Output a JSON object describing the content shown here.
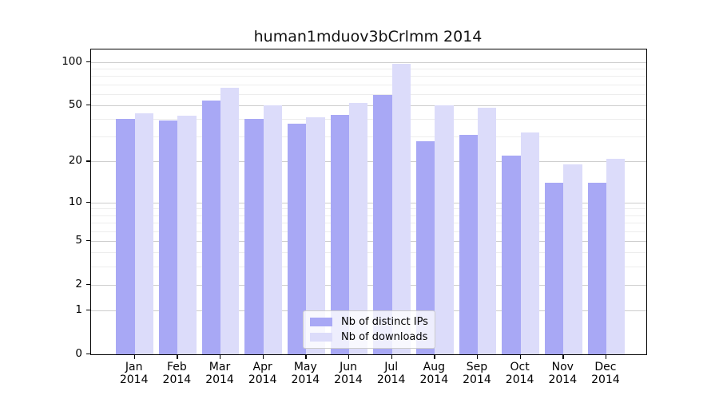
{
  "chart_data": {
    "type": "bar",
    "title": "human1mduov3bCrlmm 2014",
    "categories": [
      {
        "month": "Jan",
        "year": "2014"
      },
      {
        "month": "Feb",
        "year": "2014"
      },
      {
        "month": "Mar",
        "year": "2014"
      },
      {
        "month": "Apr",
        "year": "2014"
      },
      {
        "month": "May",
        "year": "2014"
      },
      {
        "month": "Jun",
        "year": "2014"
      },
      {
        "month": "Jul",
        "year": "2014"
      },
      {
        "month": "Aug",
        "year": "2014"
      },
      {
        "month": "Sep",
        "year": "2014"
      },
      {
        "month": "Oct",
        "year": "2014"
      },
      {
        "month": "Nov",
        "year": "2014"
      },
      {
        "month": "Dec",
        "year": "2014"
      }
    ],
    "series": [
      {
        "name": "Nb of distinct IPs",
        "color": "#a8a8f5",
        "values": [
          40,
          39,
          54,
          40,
          37,
          43,
          59,
          28,
          31,
          22,
          14,
          14
        ]
      },
      {
        "name": "Nb of downloads",
        "color": "#dcdcfa",
        "values": [
          44,
          42,
          66,
          50,
          41,
          52,
          97,
          50,
          48,
          32,
          19,
          21
        ]
      }
    ],
    "yscale": "log1p",
    "yticks": [
      0,
      1,
      2,
      5,
      10,
      20,
      50,
      100
    ],
    "y_minor_gridlines": [
      3,
      4,
      6,
      7,
      8,
      9,
      30,
      40,
      60,
      70,
      80,
      90
    ],
    "ylim": [
      0,
      122
    ],
    "grid": true,
    "legend_position": "lower center",
    "colors": {
      "major_grid": "#cdcdcd",
      "minor_grid": "#ededed",
      "axis": "#000000",
      "background": "#ffffff"
    }
  }
}
